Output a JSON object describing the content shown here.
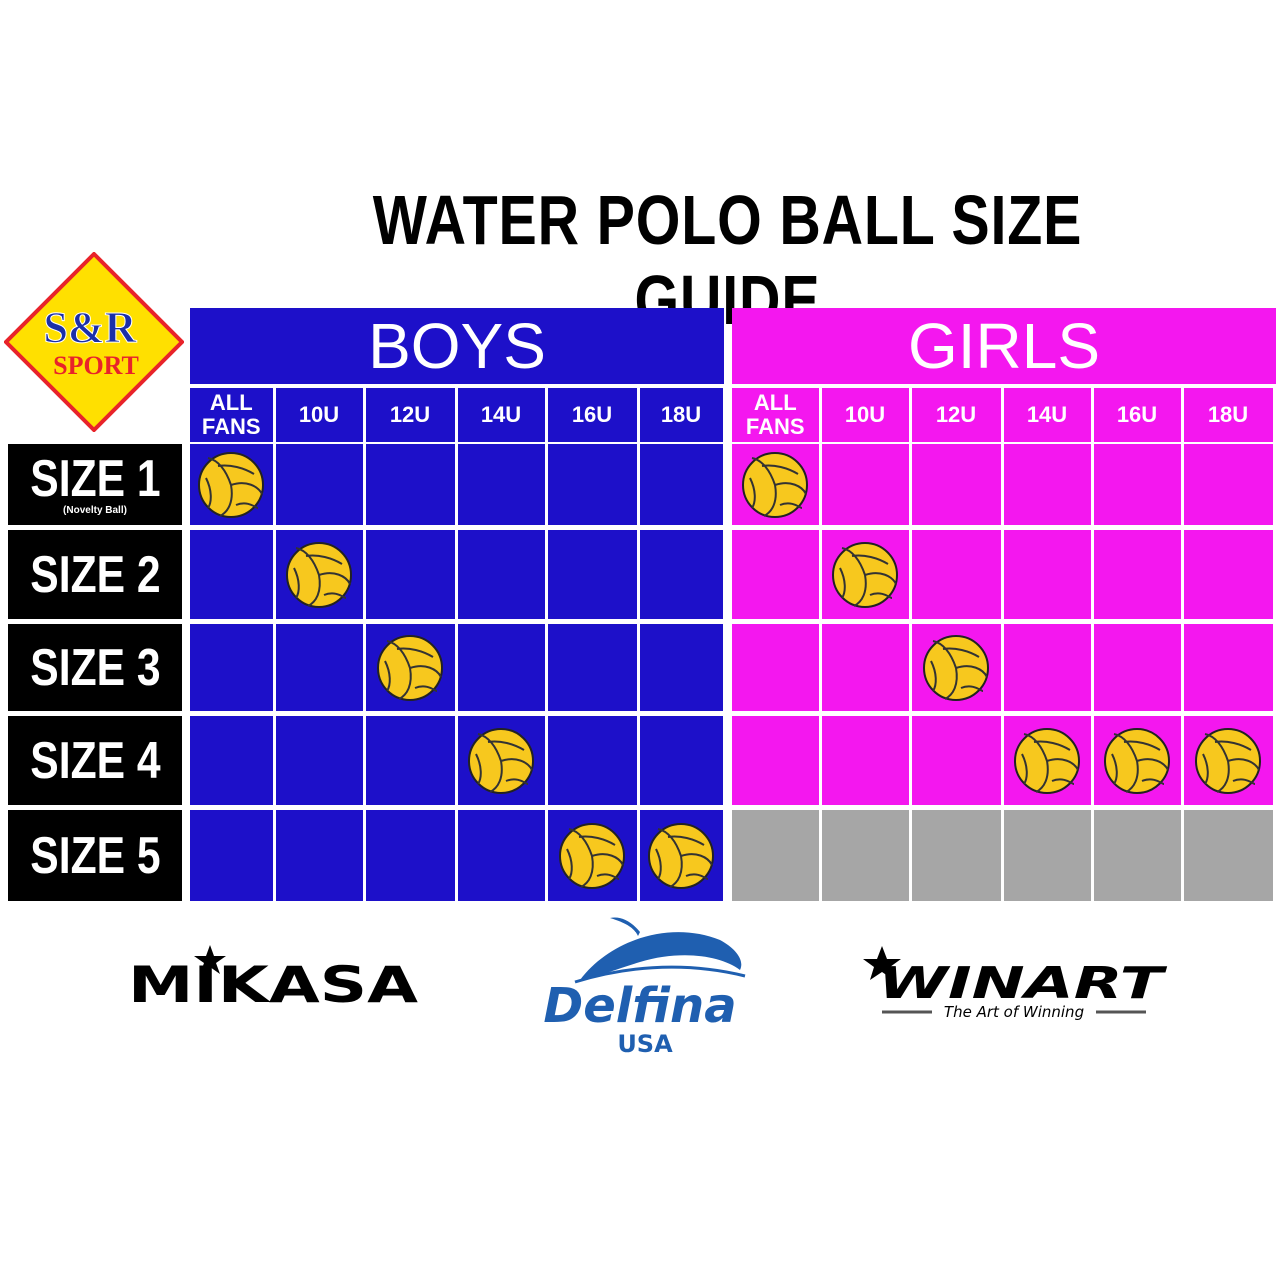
{
  "title": "WATER POLO BALL SIZE GUIDE",
  "logo": {
    "line1": "S&R",
    "line2": "SPORT"
  },
  "groups": [
    {
      "name": "BOYS",
      "columns": [
        "ALL FANS",
        "10U",
        "12U",
        "14U",
        "16U",
        "18U"
      ]
    },
    {
      "name": "GIRLS",
      "columns": [
        "ALL FANS",
        "10U",
        "12U",
        "14U",
        "16U",
        "18U"
      ]
    }
  ],
  "rows": [
    {
      "label": "SIZE 1",
      "note": "(Novelty Ball)",
      "cells": [
        [
          true,
          false,
          false,
          false,
          false,
          false
        ],
        [
          true,
          false,
          false,
          false,
          false,
          false
        ]
      ]
    },
    {
      "label": "SIZE 2",
      "cells": [
        [
          false,
          true,
          false,
          false,
          false,
          false
        ],
        [
          false,
          true,
          false,
          false,
          false,
          false
        ]
      ]
    },
    {
      "label": "SIZE 3",
      "cells": [
        [
          false,
          false,
          true,
          false,
          false,
          false
        ],
        [
          false,
          false,
          true,
          false,
          false,
          false
        ]
      ]
    },
    {
      "label": "SIZE 4",
      "cells": [
        [
          false,
          false,
          false,
          true,
          false,
          false
        ],
        [
          false,
          false,
          false,
          true,
          true,
          true
        ]
      ]
    },
    {
      "label": "SIZE 5",
      "cells": [
        [
          false,
          false,
          false,
          false,
          true,
          true
        ],
        [
          null,
          null,
          null,
          null,
          null,
          null
        ]
      ]
    }
  ],
  "brands": {
    "mikasa": "MIKASA",
    "delfina": "Delfina",
    "delfina_sub": "USA",
    "winart": "WINART",
    "winart_tagline": "The Art of Winning"
  }
}
